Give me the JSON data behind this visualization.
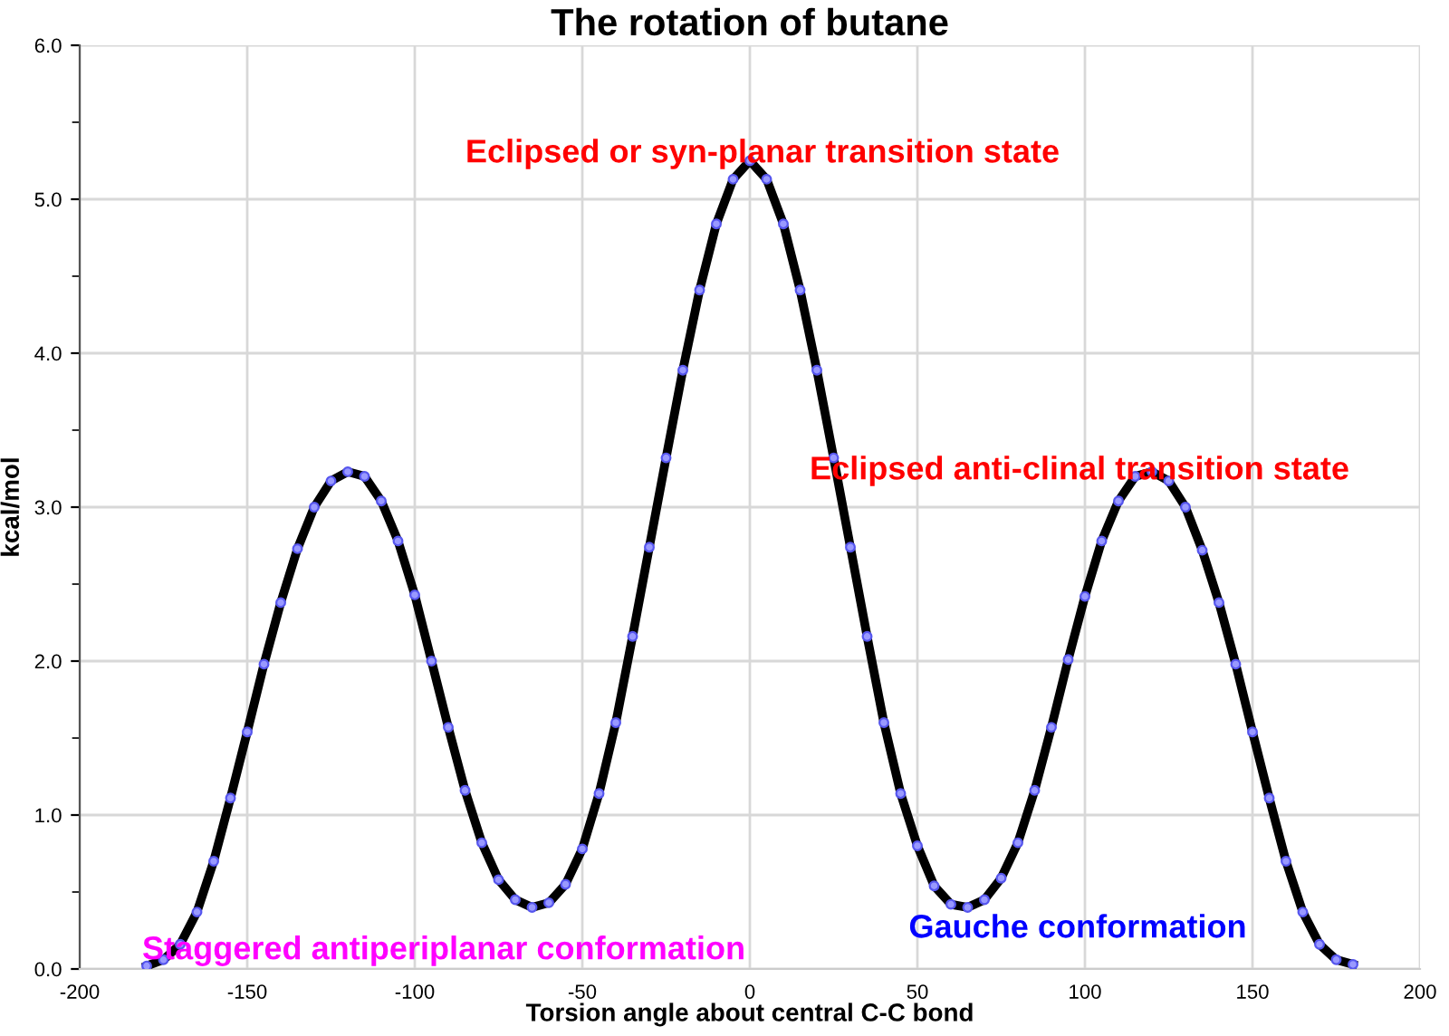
{
  "chart_data": {
    "type": "line",
    "title": "The rotation of butane",
    "xlabel": "Torsion angle about central C-C bond",
    "ylabel": "kcal/mol",
    "x": [
      -180,
      -175,
      -170,
      -165,
      -160,
      -155,
      -150,
      -145,
      -140,
      -135,
      -130,
      -125,
      -120,
      -115,
      -110,
      -105,
      -100,
      -95,
      -90,
      -85,
      -80,
      -75,
      -70,
      -65,
      -60,
      -55,
      -50,
      -45,
      -40,
      -35,
      -30,
      -25,
      -20,
      -15,
      -10,
      -5,
      0,
      5,
      10,
      15,
      20,
      25,
      30,
      35,
      40,
      45,
      50,
      55,
      60,
      65,
      70,
      75,
      80,
      85,
      90,
      95,
      100,
      105,
      110,
      115,
      120,
      125,
      130,
      135,
      140,
      145,
      150,
      155,
      160,
      165,
      170,
      175,
      180
    ],
    "series": [
      {
        "color": "#000000",
        "values": [
          0.02,
          0.06,
          0.16,
          0.37,
          0.7,
          1.11,
          1.54,
          1.98,
          2.38,
          2.73,
          3.0,
          3.17,
          3.23,
          3.2,
          3.04,
          2.78,
          2.43,
          2.0,
          1.57,
          1.16,
          0.82,
          0.58,
          0.45,
          0.4,
          0.43,
          0.55,
          0.78,
          1.14,
          1.6,
          2.16,
          2.74,
          3.32,
          3.89,
          4.41,
          4.84,
          5.13,
          5.25,
          5.13,
          4.84,
          4.41,
          3.89,
          3.32,
          2.74,
          2.16,
          1.6,
          1.14,
          0.8,
          0.54,
          0.42,
          0.4,
          0.45,
          0.59,
          0.82,
          1.16,
          1.57,
          2.01,
          2.42,
          2.78,
          3.04,
          3.2,
          3.23,
          3.17,
          3.0,
          2.72,
          2.38,
          1.98,
          1.54,
          1.11,
          0.7,
          0.37,
          0.16,
          0.06,
          0.03
        ]
      }
    ],
    "marker": "circle",
    "line_style": "solid",
    "grid": true,
    "xlim": [
      -200,
      200
    ],
    "xticks": [
      -200,
      -150,
      -100,
      -50,
      0,
      50,
      100,
      150,
      200
    ],
    "ylim": [
      0,
      6
    ],
    "yticks": [
      {
        "value": 0,
        "label": "0.0"
      },
      {
        "value": 0.5,
        "label": null
      },
      {
        "value": 1,
        "label": "1.0"
      },
      {
        "value": 1.5,
        "label": null
      },
      {
        "value": 2,
        "label": "2.0"
      },
      {
        "value": 2.5,
        "label": null
      },
      {
        "value": 3,
        "label": "3.0"
      },
      {
        "value": 3.5,
        "label": null
      },
      {
        "value": 4,
        "label": "4.0"
      },
      {
        "value": 4.5,
        "label": null
      },
      {
        "value": 5,
        "label": "5.0"
      },
      {
        "value": 5.5,
        "label": null
      },
      {
        "value": 6,
        "label": "6.0"
      }
    ],
    "annotations": [
      "Eclipsed or syn-planar transition state",
      "Eclipsed anti-clinal transition state",
      "Staggered antiperiplanar conformation",
      "Gauche conformation"
    ]
  }
}
